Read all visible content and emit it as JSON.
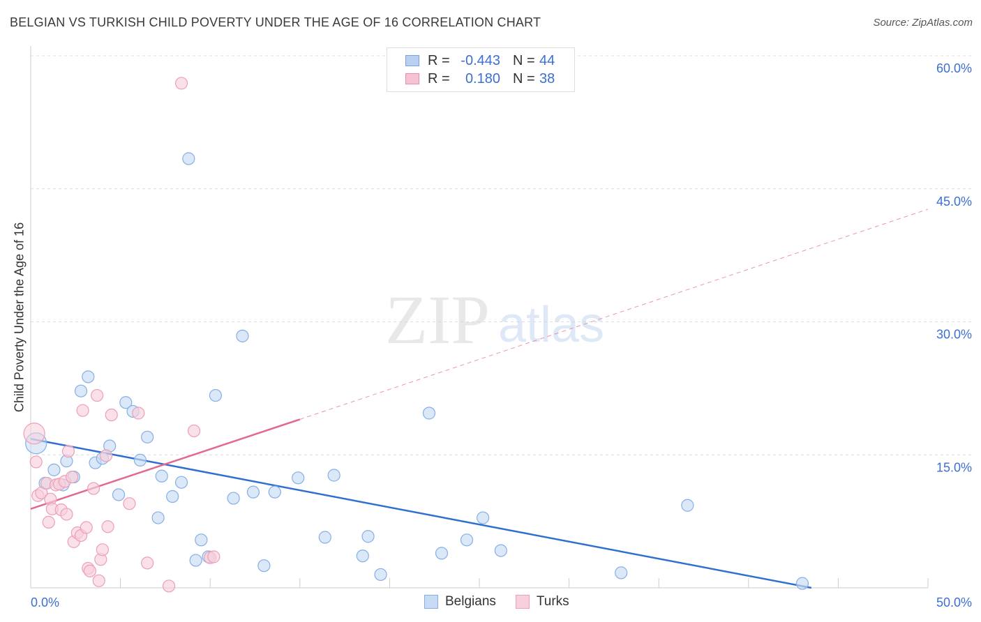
{
  "header": {
    "title": "BELGIAN VS TURKISH CHILD POVERTY UNDER THE AGE OF 16 CORRELATION CHART",
    "source": "Source: ZipAtlas.com"
  },
  "watermark": {
    "zip": "ZIP",
    "atlas": "atlas"
  },
  "legend": {
    "r_label": "R =",
    "n_label": "N =",
    "rows": [
      {
        "series": "Belgians",
        "r": "-0.443",
        "n": "44",
        "fill": "#b8d0f2",
        "stroke": "#7ba2de"
      },
      {
        "series": "Turks",
        "r": "0.180",
        "n": "38",
        "fill": "#f7c3d2",
        "stroke": "#e88fab"
      }
    ]
  },
  "bottom_legend": [
    "Belgians",
    "Turks"
  ],
  "colors": {
    "blue_point_fill": "#c7dbf5",
    "blue_point_stroke": "#86aee6",
    "pink_point_fill": "#f8d0dc",
    "pink_point_stroke": "#ec9fb7",
    "blue_line": "#2f6fd0",
    "pink_line": "#e2688f",
    "axis_text": "#3b6fd4",
    "grid": "#dddddd"
  },
  "chart_data": {
    "type": "scatter",
    "title": "BELGIAN VS TURKISH CHILD POVERTY UNDER THE AGE OF 16 CORRELATION CHART",
    "xlabel": "",
    "ylabel": "Child Poverty Under the Age of 16",
    "xlim": [
      0,
      50
    ],
    "ylim": [
      0,
      60
    ],
    "x_tick_labels": [
      "0.0%",
      "50.0%"
    ],
    "y_ticks": [
      15,
      30,
      45,
      60
    ],
    "y_tick_labels": [
      "15.0%",
      "30.0%",
      "45.0%",
      "60.0%"
    ],
    "series": [
      {
        "name": "Belgians",
        "points": [
          [
            0.3,
            16.3
          ],
          [
            0.8,
            11.8
          ],
          [
            1.3,
            13.3
          ],
          [
            1.8,
            11.6
          ],
          [
            2.0,
            14.3
          ],
          [
            2.4,
            12.5
          ],
          [
            2.8,
            22.2
          ],
          [
            3.2,
            23.8
          ],
          [
            3.6,
            14.1
          ],
          [
            4.0,
            14.6
          ],
          [
            4.4,
            16.0
          ],
          [
            4.9,
            10.5
          ],
          [
            5.3,
            20.9
          ],
          [
            5.7,
            19.9
          ],
          [
            6.1,
            14.4
          ],
          [
            6.5,
            17.0
          ],
          [
            7.1,
            7.9
          ],
          [
            7.3,
            12.6
          ],
          [
            7.9,
            10.3
          ],
          [
            8.4,
            11.9
          ],
          [
            8.8,
            48.4
          ],
          [
            9.2,
            3.1
          ],
          [
            9.5,
            5.4
          ],
          [
            9.9,
            3.5
          ],
          [
            10.3,
            21.7
          ],
          [
            11.3,
            10.1
          ],
          [
            11.8,
            28.4
          ],
          [
            12.4,
            10.8
          ],
          [
            13.0,
            2.5
          ],
          [
            13.6,
            10.8
          ],
          [
            14.9,
            12.4
          ],
          [
            16.4,
            5.7
          ],
          [
            16.9,
            12.7
          ],
          [
            18.5,
            3.6
          ],
          [
            18.8,
            5.8
          ],
          [
            19.5,
            1.5
          ],
          [
            22.2,
            19.7
          ],
          [
            22.9,
            3.9
          ],
          [
            24.3,
            5.4
          ],
          [
            25.2,
            7.9
          ],
          [
            26.2,
            4.2
          ],
          [
            32.9,
            1.7
          ],
          [
            36.6,
            9.3
          ],
          [
            43.0,
            0.5
          ]
        ]
      },
      {
        "name": "Turks",
        "points": [
          [
            0.2,
            17.4
          ],
          [
            0.3,
            14.2
          ],
          [
            0.4,
            10.4
          ],
          [
            0.6,
            10.7
          ],
          [
            0.9,
            11.8
          ],
          [
            1.0,
            7.4
          ],
          [
            1.1,
            10.0
          ],
          [
            1.2,
            8.9
          ],
          [
            1.4,
            11.6
          ],
          [
            1.6,
            11.7
          ],
          [
            1.7,
            8.8
          ],
          [
            1.9,
            12.0
          ],
          [
            2.0,
            8.3
          ],
          [
            2.1,
            15.4
          ],
          [
            2.3,
            12.5
          ],
          [
            2.4,
            5.2
          ],
          [
            2.6,
            6.2
          ],
          [
            2.8,
            5.9
          ],
          [
            2.9,
            20.0
          ],
          [
            3.1,
            6.8
          ],
          [
            3.2,
            2.2
          ],
          [
            3.3,
            1.9
          ],
          [
            3.5,
            11.2
          ],
          [
            3.7,
            21.7
          ],
          [
            3.8,
            0.8
          ],
          [
            3.9,
            3.2
          ],
          [
            4.0,
            4.3
          ],
          [
            4.2,
            14.9
          ],
          [
            4.3,
            6.9
          ],
          [
            4.5,
            19.5
          ],
          [
            5.5,
            9.5
          ],
          [
            6.0,
            19.7
          ],
          [
            6.5,
            2.8
          ],
          [
            7.7,
            0.2
          ],
          [
            8.4,
            56.9
          ],
          [
            9.1,
            17.7
          ],
          [
            10.0,
            3.4
          ],
          [
            10.2,
            3.5
          ]
        ]
      }
    ],
    "trend_lines": [
      {
        "series": "Belgians",
        "x0": 0,
        "y0": 16.8,
        "x1": 43.5,
        "y1": 0,
        "style": "solid"
      },
      {
        "series": "Turks",
        "x0": 0,
        "y0": 8.9,
        "x1": 15.0,
        "y1": 19.0,
        "style": "solid",
        "extend_to_x": 50,
        "extend_to_y": 42.7,
        "extend_style": "dashed"
      }
    ]
  }
}
